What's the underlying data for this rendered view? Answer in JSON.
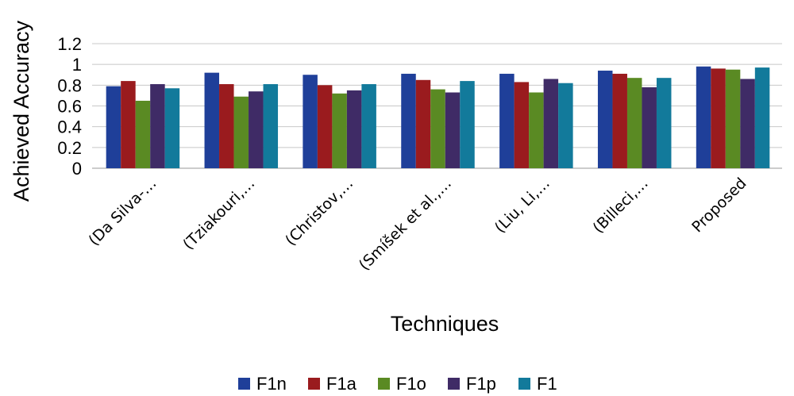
{
  "chart_data": {
    "type": "bar",
    "title": "",
    "xlabel": "Techniques",
    "ylabel": "Achieved Accuracy",
    "ylim": [
      0,
      1.2
    ],
    "yticks": [
      "0",
      "0.2",
      "0.4",
      "0.6",
      "0.8",
      "1",
      "1.2"
    ],
    "grid": true,
    "legend_position": "bottom",
    "categories": [
      "(Da Silva-…",
      "(Tziakouri,…",
      "(Christov,…",
      "(Smíšek et al.,…",
      "(Liu, Li,…",
      "(Billeci,…",
      "Proposed"
    ],
    "series": [
      {
        "name": "F1n",
        "color": "#1f3f99",
        "values": [
          0.79,
          0.92,
          0.9,
          0.91,
          0.91,
          0.94,
          0.98
        ]
      },
      {
        "name": "F1a",
        "color": "#9a1b1e",
        "values": [
          0.84,
          0.81,
          0.8,
          0.85,
          0.83,
          0.91,
          0.96
        ]
      },
      {
        "name": "F1o",
        "color": "#5a8a23",
        "values": [
          0.65,
          0.69,
          0.72,
          0.76,
          0.73,
          0.87,
          0.95
        ]
      },
      {
        "name": "F1p",
        "color": "#3f2b66",
        "values": [
          0.81,
          0.74,
          0.75,
          0.73,
          0.86,
          0.78,
          0.86
        ]
      },
      {
        "name": "F1",
        "color": "#127a9b",
        "values": [
          0.77,
          0.81,
          0.81,
          0.84,
          0.82,
          0.87,
          0.97
        ]
      }
    ]
  }
}
